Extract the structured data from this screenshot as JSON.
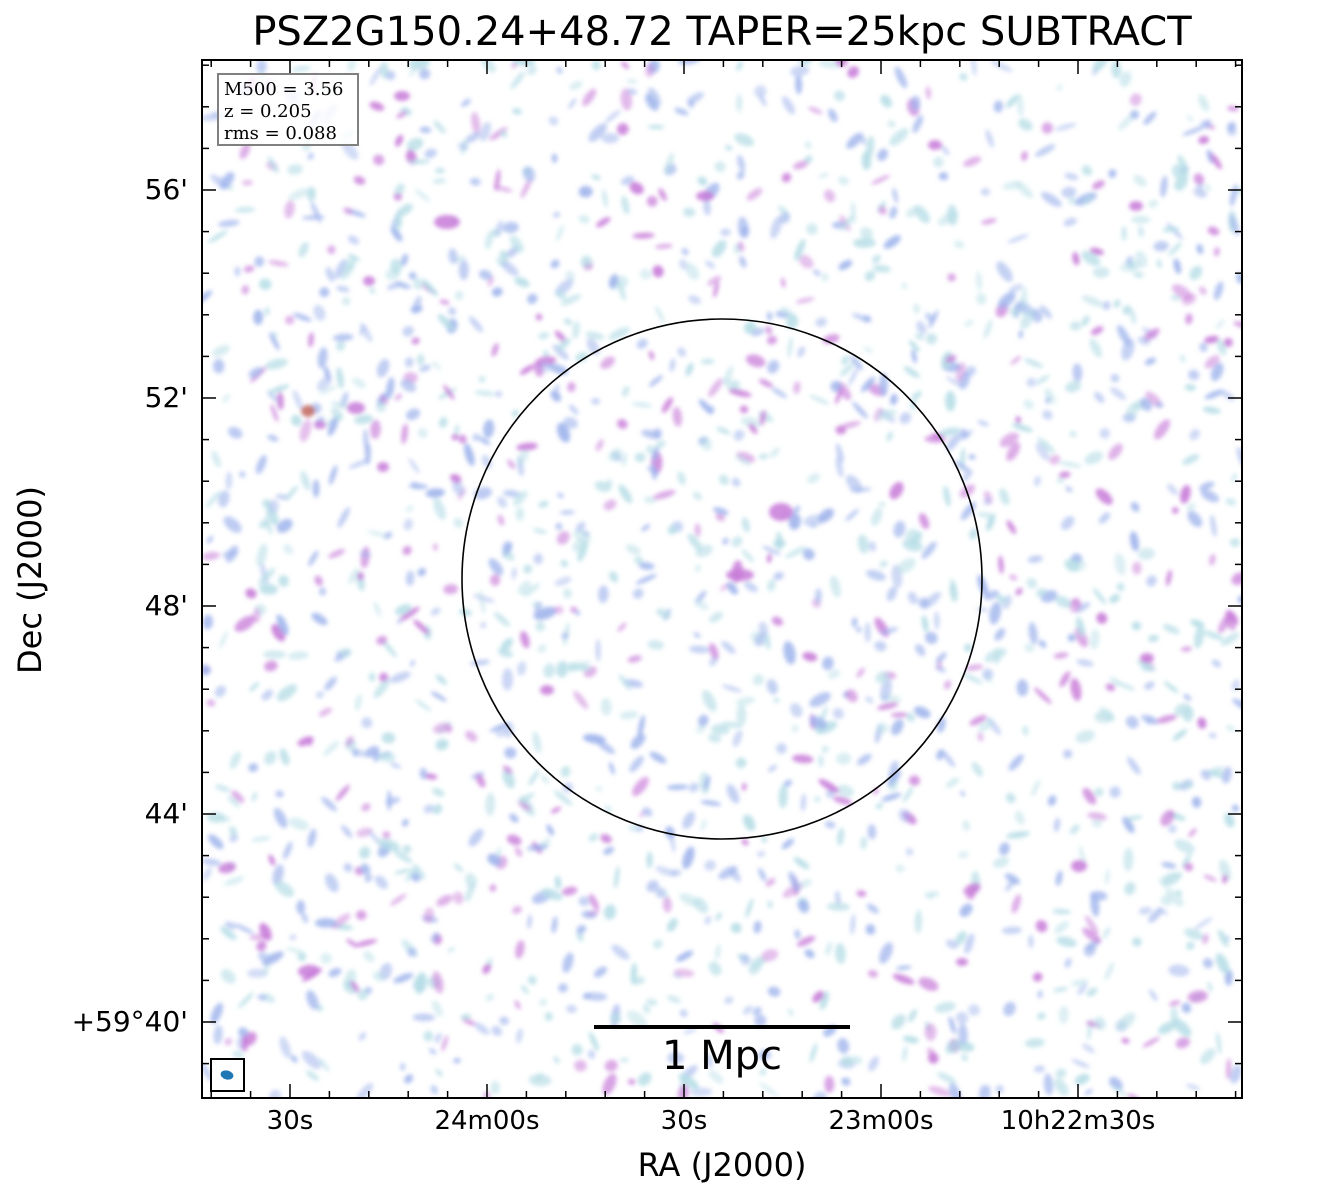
{
  "title": "PSZ2G150.24+48.72 TAPER=25kpc SUBTRACT",
  "axes": {
    "xlabel": "RA (J2000)",
    "ylabel": "Dec (J2000)",
    "x_ticks": [
      "30s",
      "24m00s",
      "30s",
      "23m00s",
      "10h22m30s"
    ],
    "y_ticks": [
      "56'",
      "52'",
      "48'",
      "44'",
      "+59°40'"
    ]
  },
  "info": {
    "m500": "M500 = 3.56",
    "z": "z = 0.205",
    "rms": "rms = 0.088"
  },
  "scalebar": {
    "label": "1 Mpc"
  },
  "colors": {
    "frame": "#000000",
    "circle": "#000000",
    "beam": "#1f77b4",
    "emission_low": "#b6dde6",
    "emission_mid": "#9fb4ec",
    "emission_high": "#c77ad8",
    "emission_peak": "#c0645a"
  }
}
